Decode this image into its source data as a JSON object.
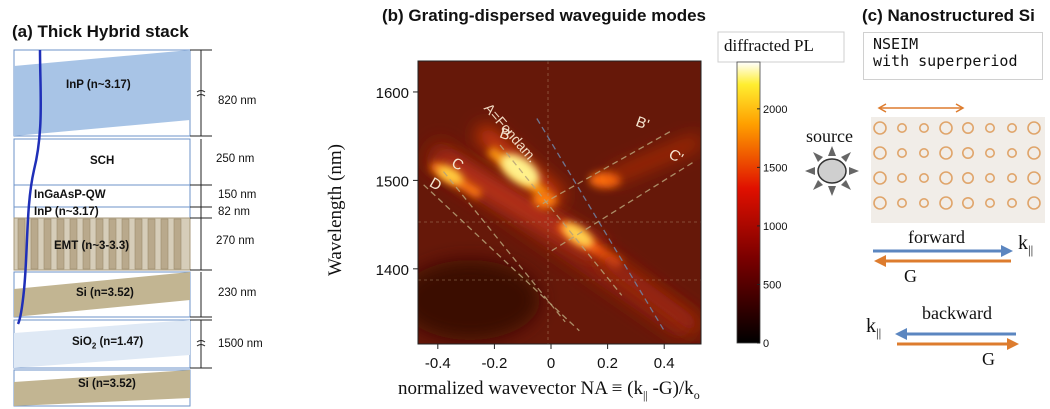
{
  "panel_a": {
    "title": "(a) Thick Hybrid stack",
    "layers": [
      {
        "label": "InP (n~3.17)",
        "thickness": "820 nm"
      },
      {
        "label": "SCH",
        "thickness": "250 nm"
      },
      {
        "label": "InGaAsP-QW",
        "thickness": "150 nm"
      },
      {
        "label": "InP (n~3.17)",
        "thickness": "82 nm"
      },
      {
        "label": "EMT (n~3-3.3)",
        "thickness": "270 nm"
      },
      {
        "label": "Si (n=3.52)",
        "thickness": "230 nm"
      },
      {
        "label": "SiO",
        "sub": "2",
        "label_tail": " (n=1.47)",
        "thickness": "1500 nm"
      },
      {
        "label": "Si (n=3.52)",
        "thickness": ""
      }
    ]
  },
  "panel_b": {
    "title": "(b) Grating-dispersed waveguide modes",
    "ylabel": "Wavelength (nm)",
    "xlabel_main": "normalized wavevector NA ≡ (k",
    "xlabel_sub1": "||",
    "xlabel_mid": " -G)/k",
    "xlabel_sub2": "o",
    "colorbar_label": "diffracted PL",
    "mode_labels": [
      "A=Fondam.",
      "B",
      "B'",
      "C",
      "C'",
      "D"
    ]
  },
  "chart_data": {
    "type": "heatmap",
    "title": "(b) Grating-dispersed waveguide modes",
    "xlabel": "normalized wavevector NA ≡ (k|| -G)/ko",
    "ylabel": "Wavelength (nm)",
    "xlim": [
      -0.47,
      0.53
    ],
    "ylim": [
      1315,
      1635
    ],
    "x_ticks": [
      -0.4,
      -0.2,
      0,
      0.2,
      0.4
    ],
    "x_tick_labels": [
      "-0.4",
      "-0.2",
      "0",
      "0.2",
      "0.4"
    ],
    "y_ticks": [
      1400,
      1500,
      1600
    ],
    "y_tick_labels": [
      "1400",
      "1500",
      "1600"
    ],
    "colorbar": {
      "label": "diffracted PL",
      "range": [
        0,
        2400
      ],
      "ticks": [
        0,
        500,
        1000,
        1500,
        2000
      ],
      "tick_labels": [
        "0",
        "500",
        "1000",
        "1500",
        "2000"
      ]
    },
    "mode_branches": [
      {
        "name": "A=Fondam.",
        "points": [
          [
            -0.05,
            1570
          ],
          [
            0.4,
            1330
          ]
        ]
      },
      {
        "name": "B",
        "points": [
          [
            -0.18,
            1540
          ],
          [
            0.25,
            1370
          ]
        ]
      },
      {
        "name": "B'",
        "points": [
          [
            0.42,
            1555
          ],
          [
            -0.05,
            1470
          ]
        ]
      },
      {
        "name": "C",
        "points": [
          [
            -0.38,
            1510
          ],
          [
            0.05,
            1340
          ]
        ]
      },
      {
        "name": "C'",
        "points": [
          [
            0.5,
            1520
          ],
          [
            0.0,
            1420
          ]
        ]
      },
      {
        "name": "D",
        "points": [
          [
            -0.45,
            1495
          ],
          [
            0.1,
            1330
          ]
        ]
      }
    ],
    "grid": true
  },
  "panel_c": {
    "title": "(c) Nanostructured Si",
    "box_line1": "NSEIM",
    "box_line2": "with superperiod",
    "source_label": "source",
    "forward_label": "forward",
    "backward_label": "backward",
    "k_label": "k",
    "k_sub": "||",
    "g_label": "G"
  },
  "colors": {
    "inp_blue": "#a8c4e6",
    "emt_tan": "#b9a98c",
    "si_tan": "#c2b592",
    "sio2_blue": "#dfe9f5",
    "mode_curve": "#1f2fb8",
    "arrow_blue": "#5b86c0",
    "arrow_orange": "#dd7c2e",
    "hole_orange": "#e0a56b"
  }
}
